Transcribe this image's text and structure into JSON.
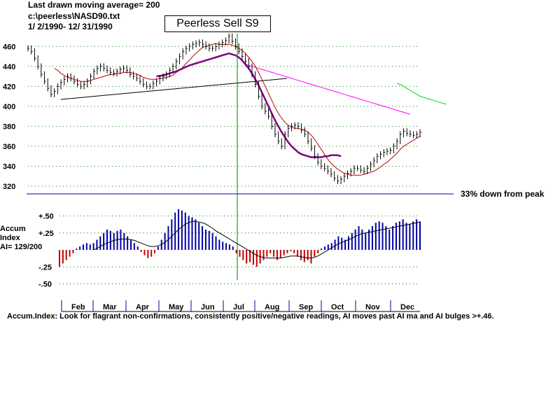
{
  "header": {
    "line1": "Last drawn moving average= 200",
    "line2": "c:\\peerless\\NASD90.txt",
    "line3": " 1/ 2/1990- 12/ 31/1990"
  },
  "title": "Peerless Sell S9",
  "colors": {
    "ma_long": "#800080",
    "ma_short": "#c00000",
    "ma_pink": "#ff00ff",
    "ma_green": "#00dd00",
    "neg": "#c00000",
    "pos": "#0000a0",
    "ref_line": "#0000a0",
    "signal_line": "#008000"
  },
  "chart_data": [
    {
      "type": "line",
      "name": "price",
      "yticks": [
        460,
        440,
        420,
        400,
        380,
        360,
        340,
        320
      ],
      "ylim": [
        320,
        470
      ],
      "months": [
        "Feb",
        "Mar",
        "Apr",
        "May",
        "Jun",
        "Jul",
        "Aug",
        "Sep",
        "Oct",
        "Nov",
        "Dec"
      ],
      "price": [
        458,
        455,
        448,
        440,
        432,
        425,
        418,
        412,
        415,
        420,
        424,
        427,
        430,
        428,
        425,
        422,
        420,
        422,
        425,
        430,
        435,
        438,
        440,
        438,
        436,
        434,
        433,
        435,
        437,
        438,
        436,
        432,
        430,
        428,
        425,
        422,
        420,
        420,
        423,
        425,
        428,
        430,
        432,
        436,
        440,
        445,
        450,
        455,
        458,
        460,
        462,
        463,
        464,
        462,
        460,
        458,
        458,
        460,
        462,
        464,
        466,
        470,
        465,
        460,
        455,
        450,
        445,
        440,
        432,
        422,
        410,
        400,
        395,
        390,
        380,
        372,
        365,
        360,
        372,
        378,
        380,
        381,
        380,
        376,
        372,
        365,
        358,
        350,
        344,
        340,
        338,
        335,
        332,
        328,
        325,
        327,
        330,
        333,
        335,
        338,
        338,
        336,
        335,
        338,
        342,
        346,
        350,
        352,
        354,
        355,
        356,
        360,
        365,
        372,
        375,
        373,
        372,
        371,
        372,
        374
      ],
      "ma_short": [
        null,
        null,
        null,
        null,
        null,
        null,
        null,
        null,
        438,
        436,
        433,
        431,
        429,
        428,
        427,
        426,
        425,
        425,
        425,
        426,
        427,
        428,
        429,
        430,
        431,
        432,
        432,
        433,
        433,
        434,
        434,
        434,
        433,
        432,
        431,
        429,
        428,
        427,
        427,
        427,
        428,
        428,
        429,
        430,
        431,
        434,
        436,
        439,
        443,
        446,
        450,
        453,
        456,
        459,
        460,
        461,
        462,
        463,
        462,
        462,
        462,
        462,
        461,
        460,
        458,
        456,
        453,
        449,
        445,
        440,
        434,
        427,
        420,
        413,
        406,
        399,
        393,
        388,
        384,
        381,
        379,
        378,
        378,
        377,
        376,
        374,
        371,
        367,
        362,
        357,
        352,
        347,
        343,
        340,
        337,
        335,
        333,
        332,
        331,
        331,
        331,
        331,
        332,
        333,
        334,
        335,
        337,
        339,
        342,
        344,
        347,
        350,
        353,
        357,
        360,
        362,
        364,
        366,
        368,
        370
      ],
      "ma_long": [
        null,
        null,
        null,
        null,
        null,
        null,
        null,
        null,
        null,
        null,
        null,
        null,
        null,
        null,
        null,
        null,
        null,
        null,
        null,
        null,
        null,
        null,
        null,
        null,
        null,
        null,
        null,
        null,
        null,
        null,
        null,
        null,
        null,
        null,
        null,
        null,
        null,
        null,
        null,
        430,
        430.5,
        431,
        432,
        433,
        434,
        435,
        436.5,
        438,
        439.5,
        441,
        442,
        443,
        444,
        445,
        446,
        447,
        448,
        449,
        450,
        451,
        452,
        453,
        452,
        451,
        449,
        446,
        442,
        438,
        433,
        427,
        421,
        414,
        407,
        400,
        393,
        386,
        380,
        374,
        369,
        364,
        360,
        357,
        354,
        352,
        351,
        350,
        349,
        349,
        349,
        349,
        350,
        350,
        351,
        351,
        351,
        350
      ],
      "ma_pink": [
        null,
        null,
        null,
        null,
        null,
        null,
        null,
        null,
        null,
        null,
        null,
        null,
        null,
        null,
        null,
        null,
        null,
        null,
        null,
        null,
        null,
        null,
        null,
        null,
        null,
        null,
        null,
        null,
        null,
        null,
        null,
        null,
        null,
        null,
        null,
        null,
        null,
        null,
        null,
        null,
        null,
        null,
        null,
        null,
        null,
        null,
        null,
        null,
        null,
        null,
        null,
        null,
        null,
        null,
        null,
        null,
        null,
        null,
        null,
        null,
        null,
        null,
        null,
        null,
        null,
        null,
        442,
        441,
        440,
        439,
        438,
        437,
        436,
        435,
        434,
        433,
        432,
        431,
        430,
        429,
        428,
        427,
        426,
        425,
        424,
        423,
        422,
        421,
        420,
        419,
        418,
        417,
        416,
        415,
        414,
        413,
        412,
        411,
        410,
        409,
        408,
        407,
        406,
        405,
        404,
        403,
        402,
        401,
        400,
        399,
        398,
        397,
        396,
        395,
        394,
        393,
        392
      ],
      "ma_green": [
        null,
        null,
        null,
        null,
        null,
        null,
        null,
        null,
        null,
        null,
        null,
        null,
        null,
        null,
        null,
        null,
        null,
        null,
        null,
        null,
        null,
        null,
        null,
        null,
        null,
        null,
        null,
        null,
        null,
        null,
        null,
        null,
        null,
        null,
        null,
        null,
        null,
        null,
        null,
        null,
        null,
        null,
        null,
        null,
        null,
        null,
        null,
        null,
        null,
        null,
        null,
        null,
        null,
        null,
        null,
        null,
        null,
        null,
        null,
        null,
        null,
        null,
        null,
        null,
        null,
        null,
        null,
        null,
        null,
        null,
        null,
        null,
        null,
        null,
        null,
        null,
        null,
        null,
        null,
        null,
        null,
        null,
        null,
        null,
        null,
        null,
        null,
        null,
        null,
        null,
        null,
        null,
        null,
        null,
        null,
        null,
        null,
        null,
        null,
        null,
        null,
        null,
        null,
        null,
        null,
        null,
        null,
        null,
        null,
        null,
        null,
        null,
        423,
        422,
        420,
        418,
        416,
        414,
        412,
        410,
        409,
        408,
        407,
        406,
        405,
        404,
        403,
        402
      ]
    },
    {
      "type": "bar",
      "name": "Accum Index",
      "yticks_labels": [
        "+.50",
        "+.25",
        "-.25",
        "-.50"
      ],
      "yticks_values": [
        0.5,
        0.25,
        -0.25,
        -0.5
      ],
      "ylim": [
        -0.5,
        0.55
      ],
      "ai_values": [
        -0.25,
        -0.2,
        -0.15,
        -0.1,
        -0.05,
        0.02,
        0.05,
        0.08,
        0.1,
        0.08,
        0.1,
        0.15,
        0.2,
        0.25,
        0.3,
        0.28,
        0.25,
        0.28,
        0.3,
        0.25,
        0.2,
        0.15,
        0.1,
        0.05,
        -0.03,
        -0.08,
        -0.12,
        -0.1,
        -0.05,
        0.05,
        0.15,
        0.25,
        0.35,
        0.45,
        0.55,
        0.6,
        0.58,
        0.55,
        0.5,
        0.48,
        0.45,
        0.4,
        0.35,
        0.3,
        0.28,
        0.25,
        0.2,
        0.15,
        0.12,
        0.1,
        0.08,
        0.05,
        -0.05,
        -0.1,
        -0.15,
        -0.2,
        -0.18,
        -0.22,
        -0.25,
        -0.2,
        -0.15,
        -0.1,
        -0.05,
        -0.1,
        -0.15,
        -0.12,
        -0.08,
        -0.05,
        -0.02,
        -0.05,
        -0.1,
        -0.15,
        -0.18,
        -0.15,
        -0.2,
        -0.1,
        -0.05,
        0.02,
        0.05,
        0.08,
        0.1,
        0.15,
        0.2,
        0.18,
        0.15,
        0.2,
        0.25,
        0.3,
        0.35,
        0.3,
        0.25,
        0.3,
        0.35,
        0.4,
        0.42,
        0.4,
        0.35,
        0.3,
        0.35,
        0.4,
        0.42,
        0.45,
        0.4,
        0.38,
        0.42,
        0.45,
        0.42
      ],
      "ai_ma": [
        null,
        null,
        null,
        null,
        null,
        null,
        null,
        null,
        null,
        null,
        0.0,
        0.02,
        0.05,
        0.08,
        0.1,
        0.12,
        0.14,
        0.15,
        0.16,
        0.16,
        0.16,
        0.15,
        0.14,
        0.12,
        0.1,
        0.08,
        0.06,
        0.05,
        0.05,
        0.06,
        0.08,
        0.11,
        0.15,
        0.2,
        0.25,
        0.3,
        0.34,
        0.38,
        0.4,
        0.42,
        0.42,
        0.41,
        0.4,
        0.38,
        0.35,
        0.32,
        0.28,
        0.25,
        0.22,
        0.19,
        0.16,
        0.13,
        0.1,
        0.07,
        0.04,
        0.01,
        -0.02,
        -0.05,
        -0.08,
        -0.1,
        -0.11,
        -0.12,
        -0.12,
        -0.12,
        -0.12,
        -0.12,
        -0.11,
        -0.1,
        -0.09,
        -0.09,
        -0.09,
        -0.1,
        -0.11,
        -0.12,
        -0.12,
        -0.11,
        -0.09,
        -0.06,
        -0.03,
        0.0,
        0.03,
        0.06,
        0.09,
        0.11,
        0.13,
        0.15,
        0.17,
        0.2,
        0.22,
        0.24,
        0.25,
        0.26,
        0.27,
        0.28,
        0.29,
        0.3,
        0.31,
        0.32,
        0.33,
        0.34,
        0.35,
        0.36,
        0.37,
        0.38,
        0.39,
        0.4,
        0.41
      ]
    }
  ],
  "labels": {
    "accum_title": "Accum",
    "accum_sub": "Index",
    "ai_text": "AI= 129/200",
    "down_label": "33% down from peak",
    "footer": "Accum.Index: Look for flagrant non-confirmations, consistently positive/negative readings, AI moves past AI ma and AI bulges >+.46."
  }
}
